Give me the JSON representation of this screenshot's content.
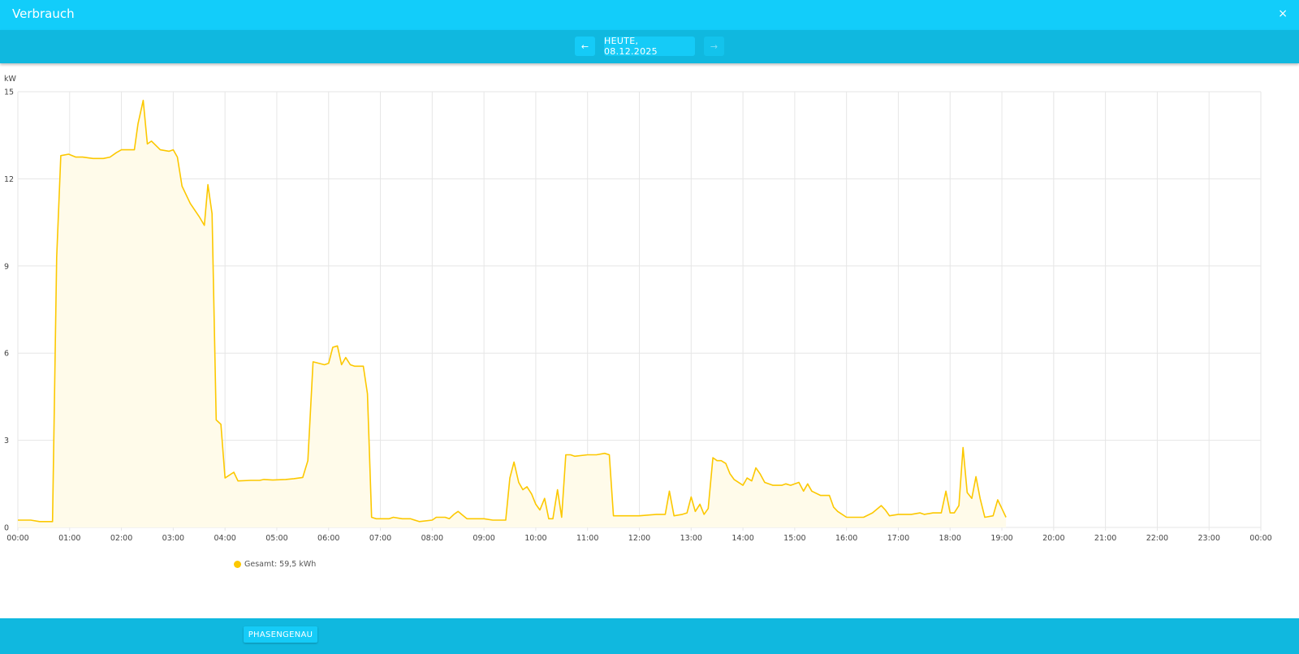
{
  "header": {
    "title": "Verbrauch",
    "close_icon": "×"
  },
  "nav": {
    "prev_icon": "←",
    "date_label": "HEUTE, 08.12.2025",
    "next_icon": "→"
  },
  "legend": {
    "label": "Gesamt: 59,5 kWh",
    "color": "#fcc800"
  },
  "footer": {
    "phase_button": "PHASENGENAU"
  },
  "colors": {
    "titlebar": "#12cdfa",
    "navbar": "#10b8df",
    "line": "#fcc800",
    "fill": "#fffbea",
    "grid": "#e6e6e6"
  },
  "chart_data": {
    "type": "area",
    "title": "Verbrauch",
    "xlabel": "",
    "ylabel": "kW",
    "ylim": [
      0,
      15
    ],
    "yticks": [
      0,
      3,
      6,
      9,
      12,
      15
    ],
    "xticks": [
      "00:00",
      "01:00",
      "02:00",
      "03:00",
      "04:00",
      "05:00",
      "06:00",
      "07:00",
      "08:00",
      "09:00",
      "10:00",
      "11:00",
      "12:00",
      "13:00",
      "14:00",
      "15:00",
      "16:00",
      "17:00",
      "18:00",
      "19:00",
      "20:00",
      "21:00",
      "22:00",
      "23:00",
      "00:00"
    ],
    "xlim_hours": [
      0,
      24
    ],
    "grid": true,
    "legend_position": "bottom-left",
    "series": [
      {
        "name": "Gesamt: 59,5 kWh",
        "points": [
          [
            0.0,
            0.25
          ],
          [
            0.25,
            0.25
          ],
          [
            0.42,
            0.2
          ],
          [
            0.67,
            0.2
          ],
          [
            0.75,
            9.3
          ],
          [
            0.83,
            12.8
          ],
          [
            0.98,
            12.85
          ],
          [
            1.12,
            12.75
          ],
          [
            1.25,
            12.75
          ],
          [
            1.45,
            12.7
          ],
          [
            1.65,
            12.7
          ],
          [
            1.78,
            12.75
          ],
          [
            1.9,
            12.9
          ],
          [
            2.0,
            13.0
          ],
          [
            2.12,
            13.0
          ],
          [
            2.25,
            13.0
          ],
          [
            2.32,
            13.9
          ],
          [
            2.42,
            14.7
          ],
          [
            2.5,
            13.2
          ],
          [
            2.58,
            13.3
          ],
          [
            2.75,
            13.0
          ],
          [
            2.92,
            12.95
          ],
          [
            3.0,
            13.0
          ],
          [
            3.08,
            12.75
          ],
          [
            3.17,
            11.75
          ],
          [
            3.33,
            11.15
          ],
          [
            3.5,
            10.7
          ],
          [
            3.6,
            10.4
          ],
          [
            3.67,
            11.8
          ],
          [
            3.75,
            10.8
          ],
          [
            3.83,
            3.7
          ],
          [
            3.92,
            3.55
          ],
          [
            4.0,
            1.7
          ],
          [
            4.17,
            1.9
          ],
          [
            4.25,
            1.6
          ],
          [
            4.5,
            1.62
          ],
          [
            4.67,
            1.62
          ],
          [
            4.75,
            1.65
          ],
          [
            4.92,
            1.63
          ],
          [
            5.17,
            1.65
          ],
          [
            5.33,
            1.68
          ],
          [
            5.5,
            1.72
          ],
          [
            5.6,
            2.3
          ],
          [
            5.7,
            5.7
          ],
          [
            5.92,
            5.6
          ],
          [
            6.0,
            5.65
          ],
          [
            6.08,
            6.2
          ],
          [
            6.17,
            6.25
          ],
          [
            6.25,
            5.6
          ],
          [
            6.33,
            5.85
          ],
          [
            6.42,
            5.6
          ],
          [
            6.5,
            5.55
          ],
          [
            6.67,
            5.55
          ],
          [
            6.75,
            4.6
          ],
          [
            6.83,
            0.35
          ],
          [
            6.92,
            0.3
          ],
          [
            7.17,
            0.3
          ],
          [
            7.25,
            0.35
          ],
          [
            7.42,
            0.3
          ],
          [
            7.58,
            0.3
          ],
          [
            7.75,
            0.2
          ],
          [
            8.0,
            0.25
          ],
          [
            8.08,
            0.35
          ],
          [
            8.25,
            0.35
          ],
          [
            8.33,
            0.3
          ],
          [
            8.42,
            0.45
          ],
          [
            8.5,
            0.55
          ],
          [
            8.67,
            0.3
          ],
          [
            9.0,
            0.3
          ],
          [
            9.17,
            0.25
          ],
          [
            9.42,
            0.25
          ],
          [
            9.5,
            1.7
          ],
          [
            9.58,
            2.25
          ],
          [
            9.67,
            1.55
          ],
          [
            9.75,
            1.3
          ],
          [
            9.83,
            1.4
          ],
          [
            9.92,
            1.15
          ],
          [
            10.0,
            0.8
          ],
          [
            10.08,
            0.6
          ],
          [
            10.17,
            1.0
          ],
          [
            10.25,
            0.3
          ],
          [
            10.33,
            0.3
          ],
          [
            10.42,
            1.3
          ],
          [
            10.5,
            0.35
          ],
          [
            10.58,
            2.5
          ],
          [
            10.67,
            2.5
          ],
          [
            10.75,
            2.45
          ],
          [
            11.0,
            2.5
          ],
          [
            11.17,
            2.5
          ],
          [
            11.33,
            2.55
          ],
          [
            11.42,
            2.5
          ],
          [
            11.5,
            0.4
          ],
          [
            12.0,
            0.4
          ],
          [
            12.33,
            0.45
          ],
          [
            12.5,
            0.45
          ],
          [
            12.58,
            1.25
          ],
          [
            12.67,
            0.4
          ],
          [
            12.83,
            0.45
          ],
          [
            12.92,
            0.5
          ],
          [
            13.0,
            1.05
          ],
          [
            13.08,
            0.55
          ],
          [
            13.17,
            0.8
          ],
          [
            13.25,
            0.45
          ],
          [
            13.33,
            0.65
          ],
          [
            13.42,
            2.4
          ],
          [
            13.5,
            2.3
          ],
          [
            13.58,
            2.3
          ],
          [
            13.67,
            2.2
          ],
          [
            13.75,
            1.85
          ],
          [
            13.83,
            1.65
          ],
          [
            14.0,
            1.45
          ],
          [
            14.08,
            1.7
          ],
          [
            14.17,
            1.6
          ],
          [
            14.25,
            2.05
          ],
          [
            14.33,
            1.85
          ],
          [
            14.42,
            1.55
          ],
          [
            14.58,
            1.45
          ],
          [
            14.75,
            1.45
          ],
          [
            14.83,
            1.5
          ],
          [
            14.92,
            1.45
          ],
          [
            15.08,
            1.55
          ],
          [
            15.17,
            1.25
          ],
          [
            15.25,
            1.5
          ],
          [
            15.33,
            1.25
          ],
          [
            15.5,
            1.1
          ],
          [
            15.67,
            1.1
          ],
          [
            15.75,
            0.7
          ],
          [
            15.83,
            0.55
          ],
          [
            16.0,
            0.35
          ],
          [
            16.17,
            0.35
          ],
          [
            16.33,
            0.35
          ],
          [
            16.5,
            0.5
          ],
          [
            16.67,
            0.75
          ],
          [
            16.75,
            0.6
          ],
          [
            16.83,
            0.4
          ],
          [
            17.0,
            0.45
          ],
          [
            17.25,
            0.45
          ],
          [
            17.42,
            0.5
          ],
          [
            17.5,
            0.45
          ],
          [
            17.67,
            0.5
          ],
          [
            17.83,
            0.5
          ],
          [
            17.92,
            1.25
          ],
          [
            18.0,
            0.5
          ],
          [
            18.08,
            0.5
          ],
          [
            18.17,
            0.75
          ],
          [
            18.25,
            2.75
          ],
          [
            18.33,
            1.2
          ],
          [
            18.42,
            1.0
          ],
          [
            18.5,
            1.75
          ],
          [
            18.58,
            1.0
          ],
          [
            18.67,
            0.35
          ],
          [
            18.83,
            0.4
          ],
          [
            18.92,
            0.95
          ],
          [
            19.0,
            0.65
          ],
          [
            19.08,
            0.35
          ]
        ]
      }
    ]
  }
}
